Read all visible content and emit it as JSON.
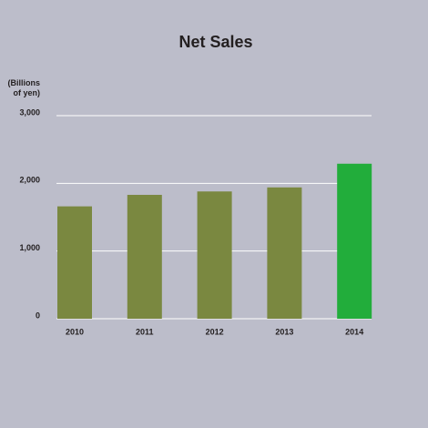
{
  "chart_data": {
    "type": "bar",
    "title": "Net Sales",
    "y_label": "(Billions of yen)",
    "categories": [
      "2010",
      "2011",
      "2012",
      "2013",
      "2014"
    ],
    "values": [
      1660,
      1830,
      1880,
      1940,
      2290
    ],
    "colors": [
      "#7a8840",
      "#7a8840",
      "#7a8840",
      "#7a8840",
      "#22ad3b"
    ],
    "ylim": [
      0,
      3000
    ],
    "yticks": [
      0,
      {
        "value": 1000,
        "label": "1,000"
      },
      {
        "value": 2000,
        "label": "2,000"
      },
      {
        "value": 3000,
        "label": "3,000"
      }
    ],
    "grid": true
  }
}
